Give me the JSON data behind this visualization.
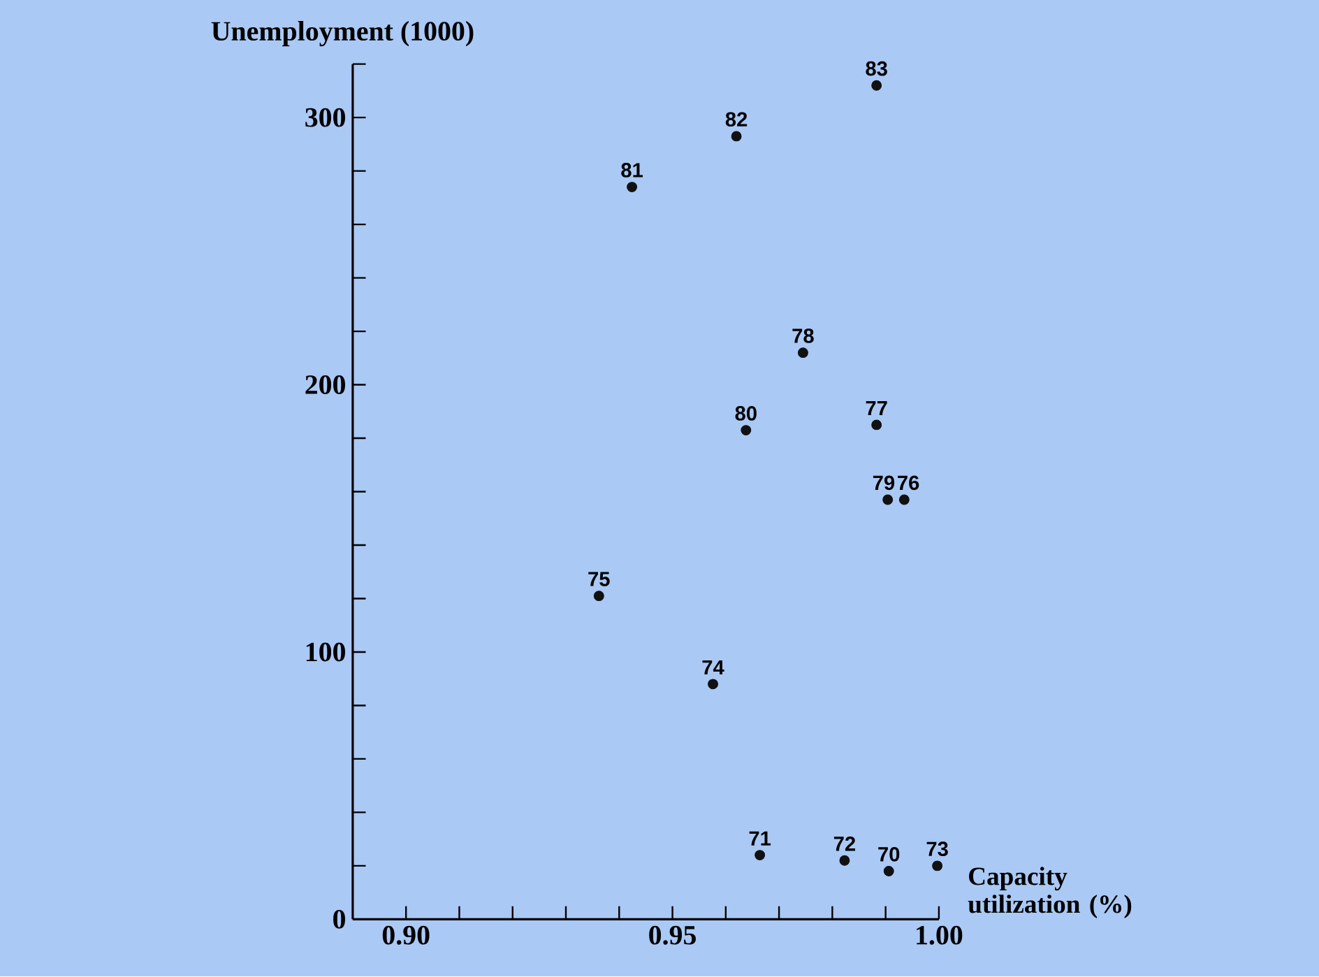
{
  "chart_data": {
    "type": "scatter",
    "xlabel": "Capacity utilization (%)",
    "ylabel": "Unemployment (1000)",
    "x": [
      0.9883,
      0.962,
      0.9424,
      0.9745,
      0.9638,
      0.9883,
      0.9904,
      0.9935,
      0.9362,
      0.9576,
      0.9664,
      0.9823,
      0.9906,
      0.9997
    ],
    "values": [
      312,
      293,
      274,
      212,
      183,
      185,
      157,
      157,
      121,
      88,
      24,
      22,
      18,
      20
    ],
    "annotations": [
      {
        "text": "83",
        "x": 0.9883,
        "y": 312
      },
      {
        "text": "82",
        "x": 0.962,
        "y": 293
      },
      {
        "text": "81",
        "x": 0.9424,
        "y": 274
      },
      {
        "text": "78",
        "x": 0.9745,
        "y": 212
      },
      {
        "text": "80",
        "x": 0.9638,
        "y": 183
      },
      {
        "text": "77",
        "x": 0.9883,
        "y": 185
      },
      {
        "text": "79",
        "x": 0.9904,
        "y": 157
      },
      {
        "text": "76",
        "x": 0.9935,
        "y": 157
      },
      {
        "text": "75",
        "x": 0.9362,
        "y": 121
      },
      {
        "text": "74",
        "x": 0.9576,
        "y": 88
      },
      {
        "text": "71",
        "x": 0.9664,
        "y": 24
      },
      {
        "text": "72",
        "x": 0.9823,
        "y": 22
      },
      {
        "text": "70",
        "x": 0.9906,
        "y": 18
      },
      {
        "text": "73",
        "x": 0.9997,
        "y": 20
      }
    ],
    "color": "#111111",
    "marker": "circle",
    "xlim": [
      0.89,
      1.0
    ],
    "ylim": [
      0,
      320
    ],
    "xticks": [
      {
        "value": 0.9,
        "label": "0.90"
      },
      {
        "value": 0.91,
        "label": null
      },
      {
        "value": 0.92,
        "label": null
      },
      {
        "value": 0.93,
        "label": null
      },
      {
        "value": 0.94,
        "label": null
      },
      {
        "value": 0.95,
        "label": "0.95"
      },
      {
        "value": 0.96,
        "label": null
      },
      {
        "value": 0.97,
        "label": null
      },
      {
        "value": 0.98,
        "label": null
      },
      {
        "value": 0.99,
        "label": null
      },
      {
        "value": 1.0,
        "label": "1.00"
      }
    ],
    "yticks": [
      0,
      {
        "value": 20,
        "label": null
      },
      {
        "value": 40,
        "label": null
      },
      {
        "value": 60,
        "label": null
      },
      {
        "value": 80,
        "label": null
      },
      100,
      {
        "value": 120,
        "label": null
      },
      {
        "value": 140,
        "label": null
      },
      {
        "value": 160,
        "label": null
      },
      {
        "value": 180,
        "label": null
      },
      200,
      {
        "value": 220,
        "label": null
      },
      {
        "value": 240,
        "label": null
      },
      {
        "value": 260,
        "label": null
      },
      {
        "value": 280,
        "label": null
      },
      300,
      {
        "value": 320,
        "label": null
      }
    ]
  }
}
